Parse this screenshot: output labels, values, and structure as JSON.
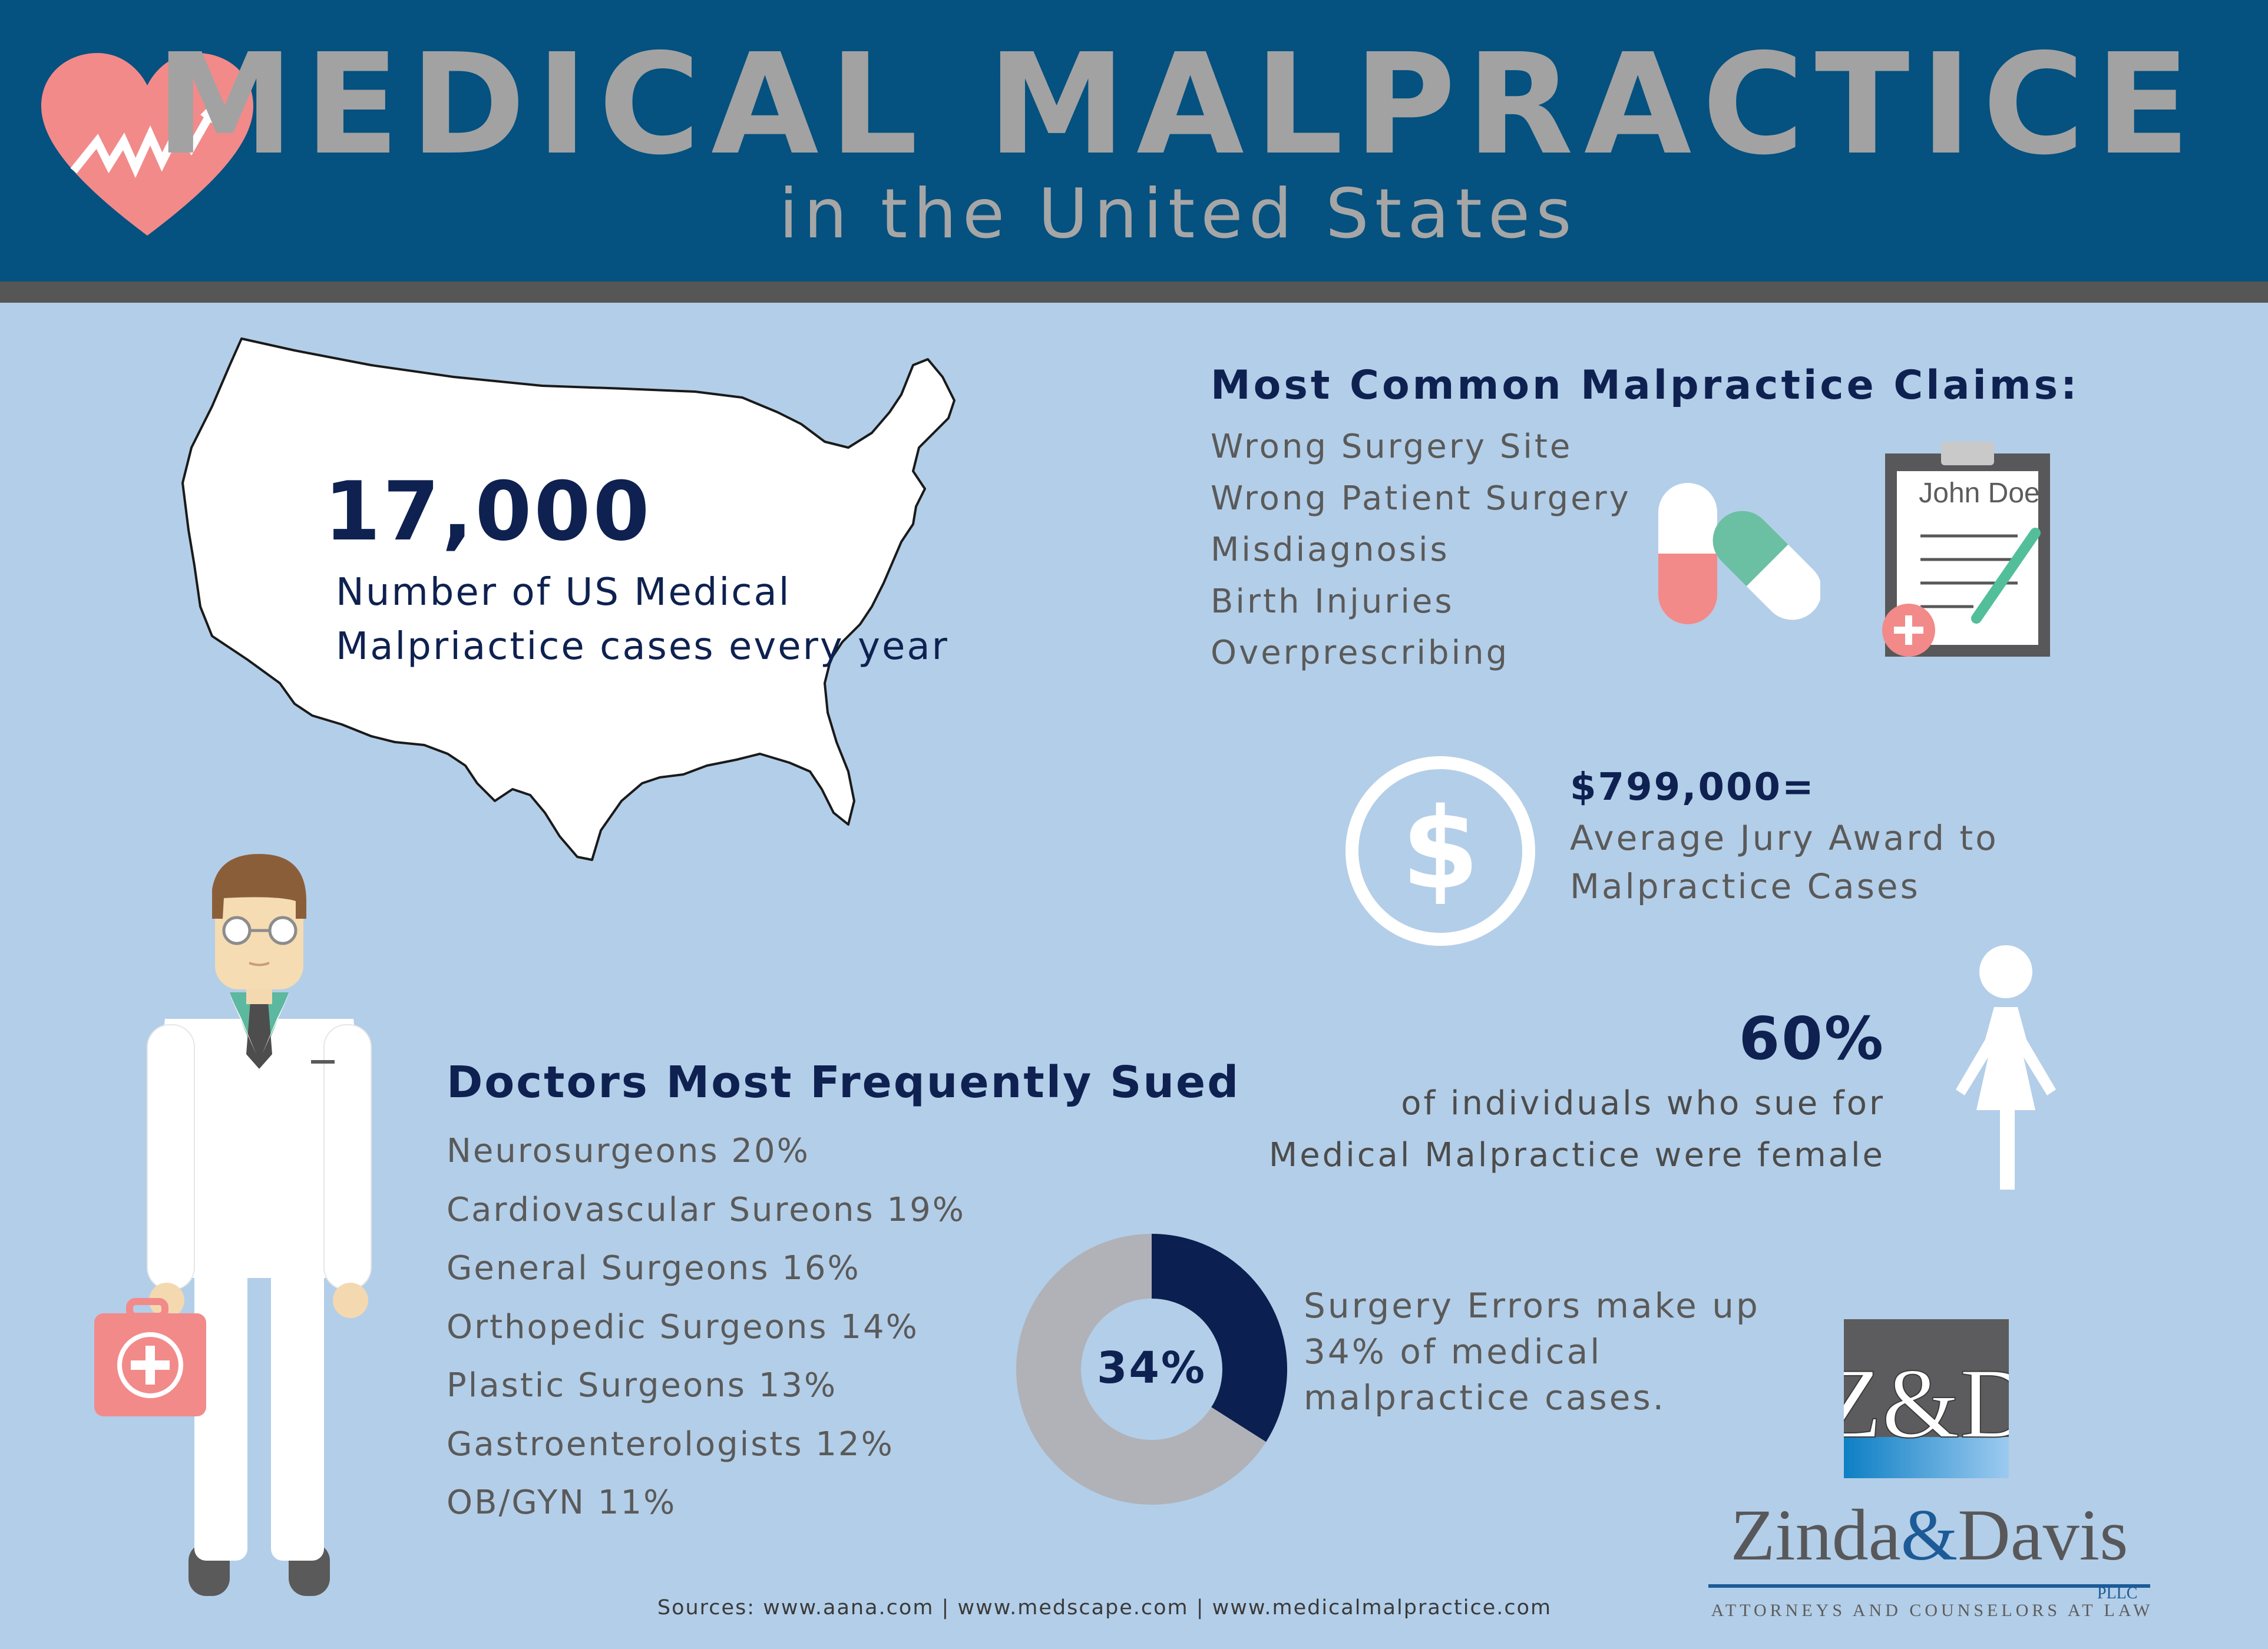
{
  "header": {
    "title": "MEDICAL MALPRACTICE",
    "subtitle": "in the United States"
  },
  "cases": {
    "value": "17,000",
    "label": "Number of US Medical Malpriactice cases every year"
  },
  "claims": {
    "title": "Most Common Malpractice Claims:",
    "items": [
      "Wrong Surgery Site",
      "Wrong Patient Surgery",
      "Misdiagnosis",
      "Birth Injuries",
      "Overprescribing"
    ],
    "clipboard_name": "John Doe"
  },
  "award": {
    "value": "$799,000=",
    "label": "Average Jury Award to Malpractice Cases",
    "icon_glyph": "$"
  },
  "female": {
    "value": "60%",
    "line1": "of individuals who sue for",
    "line2": "Medical Malpractice were female"
  },
  "sued": {
    "title": "Doctors Most Frequently Sued",
    "items": [
      "Neurosurgeons 20%",
      "Cardiovascular Sureons 19%",
      "General Surgeons 16%",
      "Orthopedic Surgeons 14%",
      "Plastic Surgeons 13%",
      "Gastroenterologists 12%",
      "OB/GYN 11%"
    ]
  },
  "surgery": {
    "percent": 34,
    "percent_label": "34%",
    "label": "Surgery Errors make up 34% of medical malpractice cases."
  },
  "logo": {
    "mark": "Z&D",
    "name_left": "Zinda",
    "name_amp": "&",
    "name_right": "Davis",
    "pllc": "PLLC",
    "tagline": "ATTORNEYS AND COUNSELORS AT LAW"
  },
  "sources": "Sources: www.aana.com | www.medscape.com | www.medicalmalpractice.com",
  "colors": {
    "background": "#b3cee8",
    "header": "#05517f",
    "navy": "#0e2150",
    "donut_highlight": "#0b1f50",
    "donut_rest": "#b0b2b8",
    "heart": "#f28a8a"
  }
}
